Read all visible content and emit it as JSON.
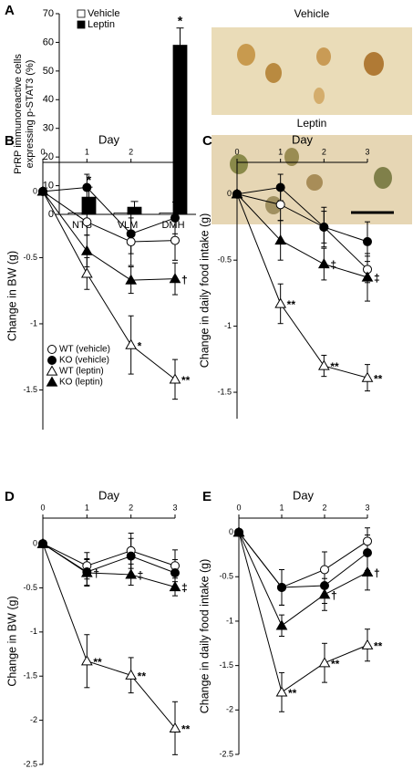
{
  "chart_data": [
    {
      "type": "bar",
      "label": "A",
      "ylabel": [
        "PrRP immunoreactive cells",
        "expressing p-STAT3 (%)"
      ],
      "categories": [
        "NTS",
        "VLM",
        "DMH"
      ],
      "series": [
        {
          "name": "Vehicle",
          "color": "#ffffff",
          "values": [
            0.5,
            0.5,
            0.5
          ]
        },
        {
          "name": "Leptin",
          "color": "#000000",
          "values": [
            6,
            2.5,
            59
          ],
          "errors": [
            3.5,
            2,
            6
          ]
        }
      ],
      "ylim": [
        0,
        70
      ],
      "yticks": [
        0,
        10,
        20,
        30,
        40,
        50,
        60,
        70
      ],
      "legend": "upper left",
      "annotations": [
        {
          "text": "*",
          "series": 1,
          "index": 0
        },
        {
          "text": "*",
          "series": 1,
          "index": 2
        }
      ],
      "images": [
        "Vehicle",
        "Leptin"
      ]
    },
    {
      "type": "line",
      "label": "B",
      "xlabel": "Day",
      "ylabel": "Change in BW (g)",
      "x": [
        0,
        1,
        2,
        3
      ],
      "xlim": [
        0,
        3
      ],
      "xticks": [
        0,
        1,
        2,
        3
      ],
      "ylim": [
        -1.8,
        0.22
      ],
      "yticks": [
        0,
        -0.5,
        -1,
        -1.5
      ],
      "legend": "lower left",
      "series": [
        {
          "name": "WT (vehicle)",
          "marker": "circle",
          "color": "#ffffff",
          "values": [
            0,
            -0.23,
            -0.38,
            -0.37
          ],
          "errors": [
            0,
            0.1,
            0.18,
            0.15
          ]
        },
        {
          "name": "KO (vehicle)",
          "marker": "circle",
          "color": "#000000",
          "values": [
            0,
            0.03,
            -0.32,
            -0.2
          ],
          "errors": [
            0,
            0.1,
            0.15,
            0.12
          ]
        },
        {
          "name": "WT (leptin)",
          "marker": "triangle",
          "color": "#ffffff",
          "values": [
            0,
            -0.62,
            -1.16,
            -1.42
          ],
          "errors": [
            0,
            0.12,
            0.22,
            0.15
          ]
        },
        {
          "name": "KO (leptin)",
          "marker": "triangle",
          "color": "#000000",
          "values": [
            0,
            -0.45,
            -0.67,
            -0.66
          ],
          "errors": [
            0,
            0.12,
            0.1,
            0.12
          ]
        }
      ],
      "annotations": [
        {
          "text": "*",
          "series": 2,
          "index": 2
        },
        {
          "text": "**",
          "series": 2,
          "index": 3
        },
        {
          "text": "†",
          "series": 3,
          "index": 3
        }
      ]
    },
    {
      "type": "line",
      "label": "C",
      "xlabel": "Day",
      "ylabel": "Change in daily food intake (g)",
      "x": [
        0,
        1,
        2,
        3
      ],
      "xlim": [
        0,
        3
      ],
      "xticks": [
        0,
        1,
        2,
        3
      ],
      "ylim": [
        -1.7,
        0.24
      ],
      "yticks": [
        0,
        -0.5,
        -1,
        -1.5
      ],
      "series": [
        {
          "marker": "circle",
          "color": "#ffffff",
          "values": [
            0,
            -0.08,
            -0.25,
            -0.57
          ],
          "errors": [
            0,
            0.12,
            0.12,
            0.1
          ]
        },
        {
          "marker": "circle",
          "color": "#000000",
          "values": [
            0,
            0.05,
            -0.25,
            -0.36
          ],
          "errors": [
            0,
            0.1,
            0.15,
            0.15
          ]
        },
        {
          "marker": "triangle",
          "color": "#ffffff",
          "values": [
            0,
            -0.83,
            -1.3,
            -1.39
          ],
          "errors": [
            0,
            0.15,
            0.08,
            0.1
          ]
        },
        {
          "marker": "triangle",
          "color": "#000000",
          "values": [
            0,
            -0.35,
            -0.53,
            -0.63
          ],
          "errors": [
            0,
            0.15,
            0.12,
            0.18
          ]
        }
      ],
      "annotations": [
        {
          "text": "**",
          "series": 2,
          "index": 1
        },
        {
          "text": "**",
          "series": 2,
          "index": 2
        },
        {
          "text": "**",
          "series": 2,
          "index": 3
        },
        {
          "text": "‡",
          "series": 3,
          "index": 2
        },
        {
          "text": "‡",
          "series": 3,
          "index": 3
        }
      ]
    },
    {
      "type": "line",
      "label": "D",
      "xlabel": "Day",
      "ylabel": "Change in BW (g)",
      "x": [
        0,
        1,
        2,
        3
      ],
      "xlim": [
        0,
        3
      ],
      "xticks": [
        0,
        1,
        2,
        3
      ],
      "ylim": [
        -2.5,
        0.29
      ],
      "yticks": [
        0,
        -0.5,
        -1,
        -1.5,
        -2,
        -2.5
      ],
      "series": [
        {
          "marker": "circle",
          "color": "#ffffff",
          "values": [
            0,
            -0.25,
            -0.08,
            -0.25
          ],
          "errors": [
            0,
            0.15,
            0.2,
            0.18
          ]
        },
        {
          "marker": "circle",
          "color": "#000000",
          "values": [
            0,
            -0.32,
            -0.14,
            -0.33
          ],
          "errors": [
            0,
            0.15,
            0.2,
            0.15
          ]
        },
        {
          "marker": "triangle",
          "color": "#ffffff",
          "values": [
            0,
            -1.33,
            -1.49,
            -2.09
          ],
          "errors": [
            0,
            0.3,
            0.2,
            0.3
          ]
        },
        {
          "marker": "triangle",
          "color": "#000000",
          "values": [
            0,
            -0.33,
            -0.35,
            -0.49
          ],
          "errors": [
            0,
            0.15,
            0.12,
            0.1
          ]
        }
      ],
      "annotations": [
        {
          "text": "†",
          "series": 3,
          "index": 1
        },
        {
          "text": "‡",
          "series": 3,
          "index": 2
        },
        {
          "text": "‡",
          "series": 3,
          "index": 3
        },
        {
          "text": "**",
          "series": 2,
          "index": 1
        },
        {
          "text": "**",
          "series": 2,
          "index": 2
        },
        {
          "text": "**",
          "series": 2,
          "index": 3
        }
      ]
    },
    {
      "type": "line",
      "label": "E",
      "xlabel": "Day",
      "ylabel": "Change in daily food intake (g)",
      "x": [
        0,
        1,
        2,
        3
      ],
      "xlim": [
        0,
        3
      ],
      "xticks": [
        0,
        1,
        2,
        3
      ],
      "ylim": [
        -2.5,
        0.16
      ],
      "yticks": [
        0,
        -0.5,
        -1,
        -1.5,
        -2,
        -2.5
      ],
      "series": [
        {
          "marker": "circle",
          "color": "#ffffff",
          "values": [
            0,
            -0.62,
            -0.42,
            -0.1
          ],
          "errors": [
            0,
            0.2,
            0.2,
            0.15
          ]
        },
        {
          "marker": "circle",
          "color": "#000000",
          "values": [
            0,
            -0.62,
            -0.6,
            -0.23
          ],
          "errors": [
            0,
            0.2,
            0.2,
            0.2
          ]
        },
        {
          "marker": "triangle",
          "color": "#ffffff",
          "values": [
            0,
            -1.8,
            -1.47,
            -1.27
          ],
          "errors": [
            0,
            0.22,
            0.22,
            0.18
          ]
        },
        {
          "marker": "triangle",
          "color": "#000000",
          "values": [
            0,
            -1.05,
            -0.7,
            -0.45
          ],
          "errors": [
            0,
            0.12,
            0.18,
            0.2
          ]
        }
      ],
      "annotations": [
        {
          "text": "**",
          "series": 2,
          "index": 1
        },
        {
          "text": "**",
          "series": 2,
          "index": 2
        },
        {
          "text": "**",
          "series": 2,
          "index": 3
        },
        {
          "text": "†",
          "series": 3,
          "index": 2
        },
        {
          "text": "†",
          "series": 3,
          "index": 3
        }
      ]
    }
  ]
}
